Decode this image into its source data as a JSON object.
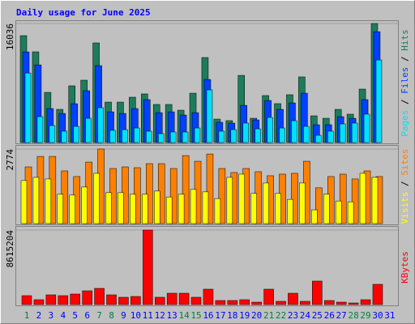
{
  "chart_data": [
    {
      "type": "bar",
      "title": "Daily usage for June 2025",
      "categories": [
        "1",
        "2",
        "3",
        "4",
        "5",
        "6",
        "7",
        "8",
        "9",
        "10",
        "11",
        "12",
        "13",
        "14",
        "15",
        "16",
        "17",
        "18",
        "19",
        "20",
        "21",
        "22",
        "23",
        "24",
        "25",
        "26",
        "27",
        "28",
        "29",
        "30",
        "31"
      ],
      "category_colors": [
        "#008040",
        "#0000ff",
        "#0000ff",
        "#0000ff",
        "#0000ff",
        "#0000ff",
        "#008040",
        "#008040",
        "#0000ff",
        "#0000ff",
        "#0000ff",
        "#0000ff",
        "#0000ff",
        "#008040",
        "#008040",
        "#0000ff",
        "#0000ff",
        "#0000ff",
        "#0000ff",
        "#0000ff",
        "#008040",
        "#008040",
        "#0000ff",
        "#0000ff",
        "#0000ff",
        "#0000ff",
        "#0000ff",
        "#008040",
        "#008040",
        "#0000ff",
        "#0000ff"
      ],
      "legend_separator": " / ",
      "ylim": [
        0,
        16036
      ],
      "yticks": [
        16036
      ],
      "series": [
        {
          "name": "Hits",
          "color": "#1c7c5c",
          "values": [
            14400,
            12220,
            6760,
            4470,
            7640,
            8400,
            13420,
            5450,
            5450,
            6110,
            6550,
            5130,
            5130,
            4360,
            6650,
            11450,
            3160,
            2950,
            9050,
            3270,
            6330,
            5240,
            6440,
            8840,
            3600,
            3270,
            4470,
            3820,
            7200,
            16036,
            null
          ]
        },
        {
          "name": "Files",
          "color": "#0040ff",
          "values": [
            12210,
            10460,
            4580,
            3920,
            5230,
            6980,
            10360,
            4140,
            3920,
            4580,
            5780,
            4030,
            4140,
            3710,
            4030,
            8500,
            2730,
            2620,
            5010,
            3050,
            5670,
            4470,
            5340,
            6650,
            2400,
            2400,
            3490,
            3270,
            5780,
            14930,
            null
          ]
        },
        {
          "name": "Pages",
          "color": "#00e0ff",
          "values": [
            9370,
            3490,
            2290,
            1530,
            2180,
            3270,
            4690,
            1640,
            1740,
            1960,
            1530,
            1200,
            1420,
            1420,
            1960,
            7090,
            1530,
            1740,
            2620,
            1850,
            3380,
            1960,
            2940,
            2180,
            980,
            1530,
            2510,
            2620,
            3820,
            11120,
            null
          ]
        }
      ]
    },
    {
      "type": "bar",
      "ylim": [
        0,
        2774
      ],
      "yticks": [
        2774
      ],
      "series": [
        {
          "name": "Sites",
          "color": "#ff8000",
          "values": [
            2110,
            2500,
            2500,
            1960,
            1750,
            2290,
            2774,
            2050,
            2110,
            2080,
            2230,
            2230,
            2050,
            2530,
            2320,
            2590,
            2050,
            1900,
            2050,
            1930,
            1780,
            1840,
            1870,
            2320,
            1330,
            1750,
            1840,
            1660,
            1960,
            1750,
            null
          ]
        },
        {
          "name": "Visits",
          "color": "#ffff00",
          "values": [
            1600,
            1720,
            1660,
            1090,
            1060,
            1360,
            1870,
            1150,
            1150,
            1090,
            1090,
            1210,
            990,
            1090,
            1270,
            1180,
            930,
            1720,
            1840,
            1120,
            1510,
            1120,
            900,
            1510,
            510,
            1090,
            840,
            810,
            1870,
            1720,
            null
          ]
        }
      ]
    },
    {
      "type": "bar",
      "ylim": [
        0,
        8615204
      ],
      "yticks": [
        8615204
      ],
      "series": [
        {
          "name": "KBytes",
          "color": "#ff0000",
          "values": [
            1030000,
            562000,
            1124000,
            1030000,
            1217000,
            1592000,
            1873000,
            1124000,
            843000,
            936000,
            8615204,
            843000,
            1311000,
            1311000,
            843000,
            1779000,
            468000,
            468000,
            562000,
            281000,
            1779000,
            375000,
            1311000,
            375000,
            2716000,
            468000,
            281000,
            187000,
            562000,
            2341000,
            null
          ]
        }
      ]
    }
  ]
}
